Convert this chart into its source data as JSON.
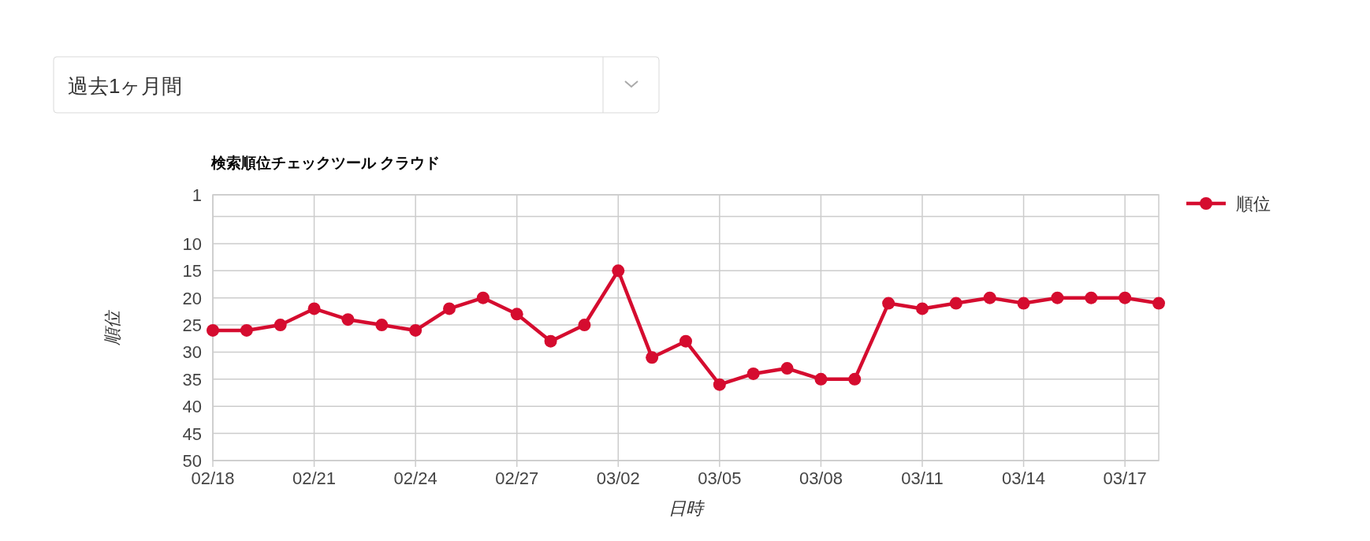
{
  "chart_data": {
    "type": "line",
    "title": "検索順位チェックツール クラウド",
    "xlabel": "日時",
    "ylabel": "順位",
    "annotations": [
      "過去1ヶ月間"
    ],
    "x": [
      "--02-18",
      "--02-19",
      "--02-20",
      "--02-21",
      "--02-22",
      "--02-23",
      "--02-24",
      "--02-25",
      "--02-26",
      "--02-27",
      "--02-28",
      "--03-01",
      "--03-02",
      "--03-03",
      "--03-04",
      "--03-05",
      "--03-06",
      "--03-07",
      "--03-08",
      "--03-09",
      "--03-10",
      "--03-11",
      "--03-12",
      "--03-13",
      "--03-14",
      "--03-15",
      "--03-16",
      "--03-17",
      "--03-18"
    ],
    "series": [
      {
        "name": "順位",
        "color": "#d50c2f",
        "values": [
          26,
          26,
          25,
          22,
          24,
          25,
          26,
          22,
          20,
          23,
          28,
          25,
          15,
          31,
          28,
          36,
          34,
          33,
          35,
          35,
          21,
          22,
          21,
          20,
          21,
          20,
          20,
          20,
          21
        ]
      }
    ],
    "xlim": [
      "--02-18",
      "--03-18"
    ],
    "xticks": [
      {
        "value": "--02-18",
        "label": "02/18"
      },
      {
        "value": "--02-21",
        "label": "02/21"
      },
      {
        "value": "--02-24",
        "label": "02/24"
      },
      {
        "value": "--02-27",
        "label": "02/27"
      },
      {
        "value": "--03-02",
        "label": "03/02"
      },
      {
        "value": "--03-05",
        "label": "03/05"
      },
      {
        "value": "--03-08",
        "label": "03/08"
      },
      {
        "value": "--03-11",
        "label": "03/11"
      },
      {
        "value": "--03-14",
        "label": "03/14"
      },
      {
        "value": "--03-17",
        "label": "03/17"
      }
    ],
    "ylim": [
      50,
      1
    ],
    "yticks": [
      1,
      {
        "value": 5,
        "label": null
      },
      10,
      15,
      20,
      25,
      30,
      35,
      40,
      45,
      50
    ],
    "grid": true,
    "legend": "top right",
    "marker": "circle",
    "line_style": "solid"
  }
}
